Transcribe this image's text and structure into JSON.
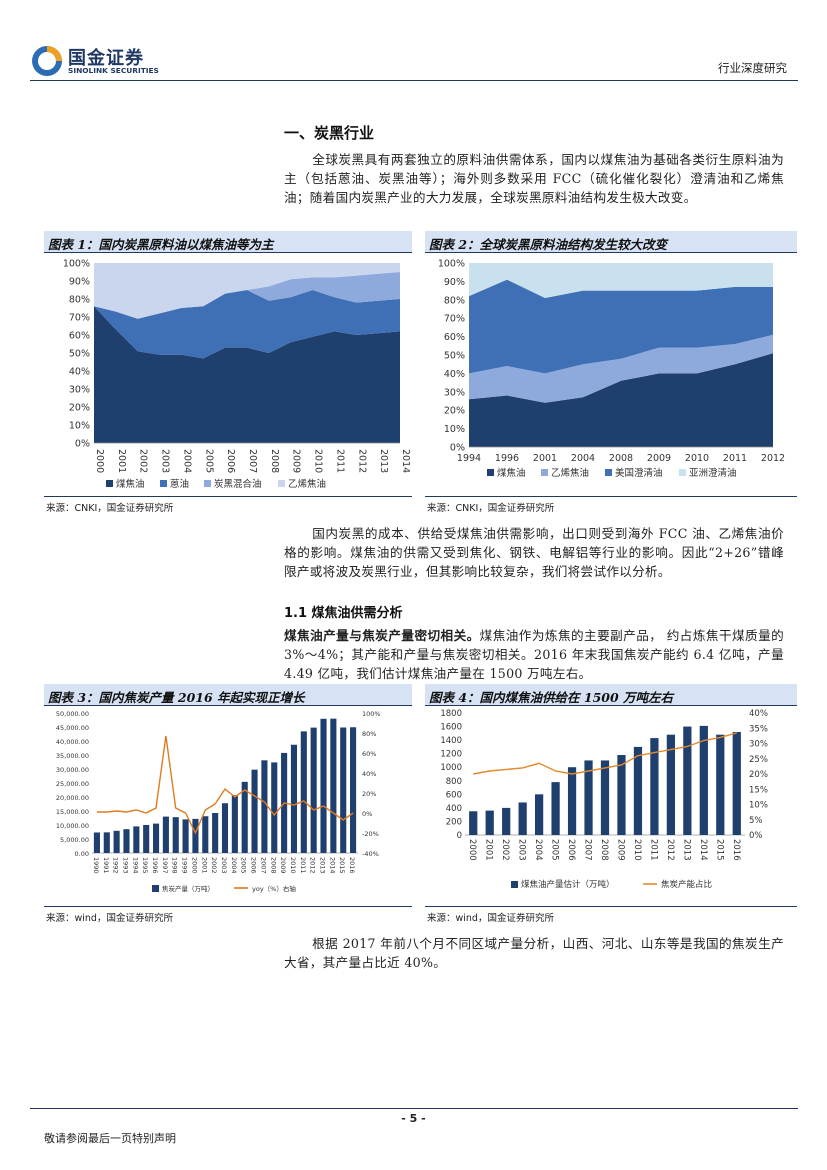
{
  "header": {
    "logo_cn": "国金证券",
    "logo_en": "SINOLINK SECURITIES",
    "doc_type": "行业深度研究"
  },
  "section": {
    "heading": "一、炭黑行业",
    "para1": "全球炭黑具有两套独立的原料油供需体系，国内以煤焦油为基础各类衍生原料油为主（包括蒽油、炭黑油等）；海外则多数采用 FCC（硫化催化裂化）澄清油和乙烯焦油；随着国内炭黑产业的大力发展，全球炭黑原料油结构发生极大改变。",
    "para2": "国内炭黑的成本、供给受煤焦油供需影响，出口则受到海外 FCC 油、乙烯焦油价格的影响。煤焦油的供需又受到焦化、钢铁、电解铝等行业的影响。因此“2+26”错峰限产或将波及炭黑行业，但其影响比较复杂，我们将尝试作以分析。",
    "sub_heading": "1.1 煤焦油供需分析",
    "para3_bold": "煤焦油产量与焦炭产量密切相关。",
    "para3_rest": "煤焦油作为炼焦的主要副产品，  约占炼焦干煤质量的 3%～4%；其产能和产量与焦炭密切相关。2016 年末我国焦炭产能约 6.4 亿吨，产量 4.49 亿吨，我们估计煤焦油产量在 1500 万吨左右。",
    "para4": "根据 2017 年前八个月不同区域产量分析，山西、河北、山东等是我国的焦炭生产大省，其产量占比近 40%。"
  },
  "figures": {
    "fig1_title": "图表 1：国内炭黑原料油以煤焦油等为主",
    "fig2_title": "图表 2：全球炭黑原料油结构发生较大改变",
    "fig3_title": "图表 3：国内焦炭产量 2016 年起实现正增长",
    "fig4_title": "图表 4：国内煤焦油供给在 1500 万吨左右",
    "src_cnki": "来源：CNKI，国金证券研究所",
    "src_wind": "来源：wind，国金证券研究所"
  },
  "footer": {
    "page_number": "- 5 -",
    "disclaimer": "敬请参阅最后一页特别声明"
  },
  "chart_data": [
    {
      "type": "area",
      "stacked": true,
      "x": [
        "2000",
        "2001",
        "2002",
        "2003",
        "2004",
        "2005",
        "2006",
        "2007",
        "2008",
        "2009",
        "2010",
        "2011",
        "2012",
        "2013",
        "2014"
      ],
      "yticks": [
        "0%",
        "10%",
        "20%",
        "30%",
        "40%",
        "50%",
        "60%",
        "70%",
        "80%",
        "90%",
        "100%"
      ],
      "ylim": [
        0,
        100
      ],
      "series": [
        {
          "name": "煤焦油",
          "color": "#1f3f6e",
          "values": [
            76,
            63,
            51,
            49,
            49,
            47,
            53,
            53,
            50,
            56,
            59,
            62,
            60,
            61,
            62
          ]
        },
        {
          "name": "蒽油",
          "color": "#3f6fb5",
          "values": [
            0,
            10,
            18,
            23,
            26,
            29,
            30,
            32,
            29,
            25,
            26,
            19,
            18,
            18,
            18
          ]
        },
        {
          "name": "炭黑混合油",
          "color": "#8ea9dc",
          "values": [
            0,
            0,
            0,
            0,
            0,
            0,
            0,
            0,
            8,
            10,
            7,
            11,
            15,
            15,
            15
          ]
        },
        {
          "name": "乙烯焦油",
          "color": "#c9d6ee",
          "values": [
            24,
            27,
            31,
            28,
            25,
            24,
            17,
            15,
            13,
            9,
            8,
            8,
            7,
            6,
            5
          ]
        }
      ],
      "legend": "bottom"
    },
    {
      "type": "area",
      "stacked": true,
      "x": [
        "1994",
        "1996",
        "2001",
        "2004",
        "2008",
        "2009",
        "2010",
        "2011",
        "2012"
      ],
      "yticks": [
        "0%",
        "10%",
        "20%",
        "30%",
        "40%",
        "50%",
        "60%",
        "70%",
        "80%",
        "90%",
        "100%"
      ],
      "ylim": [
        0,
        100
      ],
      "series": [
        {
          "name": "煤焦油",
          "color": "#1f3f6e",
          "values": [
            26,
            28,
            24,
            27,
            36,
            40,
            40,
            45,
            51
          ]
        },
        {
          "name": "乙烯焦油",
          "color": "#8ea9dc",
          "values": [
            14,
            16,
            16,
            18,
            12,
            14,
            14,
            11,
            10
          ]
        },
        {
          "name": "美国澄清油",
          "color": "#3f6fb5",
          "values": [
            42,
            47,
            41,
            40,
            37,
            31,
            31,
            31,
            26
          ]
        },
        {
          "name": "亚洲澄清油",
          "color": "#c9e0ee",
          "values": [
            18,
            9,
            19,
            15,
            15,
            15,
            15,
            13,
            13
          ]
        }
      ],
      "legend": "bottom"
    },
    {
      "type": "bar",
      "x": [
        "1990",
        "1991",
        "1992",
        "1993",
        "1994",
        "1995",
        "1996",
        "1997",
        "1998",
        "1999",
        "2000",
        "2001",
        "2002",
        "2003",
        "2004",
        "2005",
        "2006",
        "2007",
        "2008",
        "2009",
        "2010",
        "2011",
        "2012",
        "2013",
        "2014",
        "2015",
        "2016"
      ],
      "left_yticks": [
        "0.00",
        "5,000.00",
        "10,000.00",
        "15,000.00",
        "20,000.00",
        "25,000.00",
        "30,000.00",
        "35,000.00",
        "40,000.00",
        "45,000.00",
        "50,000.00"
      ],
      "right_yticks": [
        "-40%",
        "-20%",
        "0%",
        "20%",
        "40%",
        "60%",
        "80%",
        "100%"
      ],
      "bars": {
        "name": "焦炭产量（万吨）",
        "color": "#1f3f6e",
        "ylim": [
          0,
          50000
        ],
        "values": [
          7328,
          7371,
          7924,
          8500,
          9500,
          10000,
          10500,
          13000,
          12800,
          12000,
          12184,
          13131,
          14280,
          17776,
          20619,
          25412,
          29768,
          33105,
          32359,
          35744,
          38658,
          43433,
          44779,
          47932,
          47981,
          44823,
          44911
        ]
      },
      "line": {
        "name": "yoy（%）右轴",
        "color": "#e07b1f",
        "ylim": [
          -40,
          100
        ],
        "values": [
          1,
          1,
          2,
          1,
          3,
          0,
          5,
          77,
          5,
          0,
          -20,
          3,
          9,
          24,
          16,
          23,
          17,
          11,
          -2,
          10,
          8,
          12,
          3,
          7,
          0,
          -7,
          0
        ]
      },
      "legend": "bottom"
    },
    {
      "type": "bar",
      "x": [
        "2000",
        "2001",
        "2002",
        "2003",
        "2004",
        "2005",
        "2006",
        "2007",
        "2008",
        "2009",
        "2010",
        "2011",
        "2012",
        "2013",
        "2014",
        "2015",
        "2016"
      ],
      "left_yticks": [
        "0",
        "200",
        "400",
        "600",
        "800",
        "1000",
        "1200",
        "1400",
        "1600",
        "1800"
      ],
      "right_yticks": [
        "0%",
        "5%",
        "10%",
        "15%",
        "20%",
        "25%",
        "30%",
        "35%",
        "40%"
      ],
      "bars": {
        "name": "煤焦油产量估计（万吨）",
        "color": "#1f3f6e",
        "ylim": [
          0,
          1800
        ],
        "values": [
          350,
          360,
          400,
          480,
          600,
          780,
          1000,
          1100,
          1100,
          1180,
          1300,
          1430,
          1480,
          1600,
          1610,
          1480,
          1520
        ]
      },
      "line": {
        "name": "焦炭产能占比",
        "color": "#e08a2c",
        "ylim": [
          0,
          40
        ],
        "values": [
          20,
          21,
          21.5,
          22,
          23.5,
          21,
          20,
          21,
          22,
          23,
          26,
          27,
          28,
          29,
          31,
          32,
          33.5
        ]
      },
      "legend": "bottom"
    }
  ]
}
